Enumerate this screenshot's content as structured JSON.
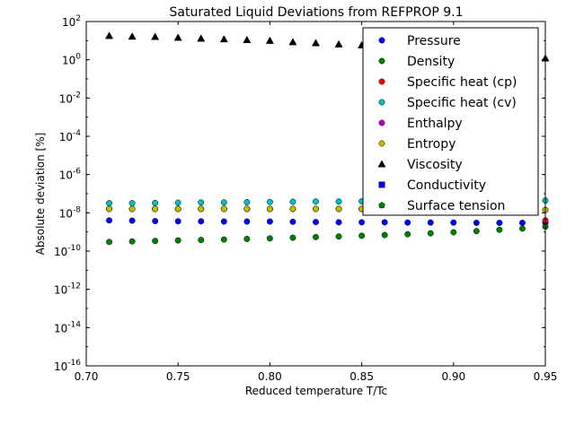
{
  "chart_data": {
    "type": "scatter",
    "title": "Saturated Liquid Deviations from REFPROP 9.1",
    "xlabel": "Reduced temperature T/Tc",
    "ylabel": "Absolute deviation [%]",
    "xlim": [
      0.7,
      0.95
    ],
    "ylim": [
      1e-16,
      100
    ],
    "yscale": "log",
    "grid": false,
    "legend_position": "top-right",
    "x_ticks": [
      {
        "value": 0.7,
        "label": "0.70"
      },
      {
        "value": 0.75,
        "label": "0.75"
      },
      {
        "value": 0.8,
        "label": "0.80"
      },
      {
        "value": 0.85,
        "label": "0.85"
      },
      {
        "value": 0.9,
        "label": "0.90"
      },
      {
        "value": 0.95,
        "label": "0.95"
      }
    ],
    "y_ticks": [
      {
        "value": 100.0,
        "base": "10",
        "exp": "2"
      },
      {
        "value": 1.0,
        "base": "10",
        "exp": "0"
      },
      {
        "value": 0.01,
        "base": "10",
        "exp": "-2"
      },
      {
        "value": 0.0001,
        "base": "10",
        "exp": "-4"
      },
      {
        "value": 1e-06,
        "base": "10",
        "exp": "-6"
      },
      {
        "value": 1e-08,
        "base": "10",
        "exp": "-8"
      },
      {
        "value": 1e-10,
        "base": "10",
        "exp": "-10"
      },
      {
        "value": 1e-12,
        "base": "10",
        "exp": "-12"
      },
      {
        "value": 1e-14,
        "base": "10",
        "exp": "-14"
      },
      {
        "value": 1e-16,
        "base": "10",
        "exp": "-16"
      }
    ],
    "x": [
      0.7125,
      0.725,
      0.7375,
      0.75,
      0.7625,
      0.775,
      0.7875,
      0.8,
      0.8125,
      0.825,
      0.8375,
      0.85,
      0.8625,
      0.875,
      0.8875,
      0.9,
      0.9125,
      0.925,
      0.9375,
      0.95
    ],
    "series": [
      {
        "name": "Pressure",
        "marker": "circle",
        "color": "#0000ff",
        "values": [
          4e-09,
          3.9e-09,
          3.7e-09,
          3.6e-09,
          3.6e-09,
          3.5e-09,
          3.5e-09,
          3.5e-09,
          3.4e-09,
          3.3e-09,
          3.2e-09,
          3.2e-09,
          3.2e-09,
          3.1e-09,
          3.1e-09,
          3.1e-09,
          3e-09,
          3e-09,
          3e-09,
          3e-09
        ]
      },
      {
        "name": "Density",
        "marker": "circle",
        "color": "#008000",
        "values": [
          3e-10,
          3.2e-10,
          3.4e-10,
          3.6e-10,
          3.8e-10,
          4e-10,
          4.3e-10,
          4.6e-10,
          5e-10,
          5.4e-10,
          5.8e-10,
          6.3e-10,
          6.9e-10,
          7.6e-10,
          8.5e-10,
          9.6e-10,
          1.1e-09,
          1.3e-09,
          1.5e-09,
          1.9e-09
        ]
      },
      {
        "name": "Specific heat (cp)",
        "marker": "circle",
        "color": "#ff0000",
        "values": [
          1.6e-08,
          1.6e-08,
          1.6e-08,
          1.6e-08,
          1.6e-08,
          1.6e-08,
          1.6e-08,
          1.6e-08,
          1.6e-08,
          1.6e-08,
          1.6e-08,
          1.6e-08,
          1.6e-08,
          1.6e-08,
          1.6e-08,
          1.6e-08,
          1.5e-08,
          1.5e-08,
          1.5e-08,
          4e-09
        ]
      },
      {
        "name": "Specific heat (cv)",
        "marker": "circle",
        "color": "#00bfbf",
        "values": [
          3.2e-08,
          3.2e-08,
          3.3e-08,
          3.4e-08,
          3.5e-08,
          3.5e-08,
          3.6e-08,
          3.7e-08,
          3.8e-08,
          3.9e-08,
          3.9e-08,
          4e-08,
          4e-08,
          4.1e-08,
          4.1e-08,
          4.2e-08,
          4.2e-08,
          4.3e-08,
          4.3e-08,
          4.4e-08
        ]
      },
      {
        "name": "Enthalpy",
        "marker": "circle",
        "color": "#bf00bf",
        "values": [
          1.6e-08,
          1.6e-08,
          1.6e-08,
          1.6e-08,
          1.6e-08,
          1.6e-08,
          1.6e-08,
          1.6e-08,
          1.6e-08,
          1.6e-08,
          1.6e-08,
          1.6e-08,
          1.6e-08,
          1.6e-08,
          1.6e-08,
          1.6e-08,
          1.5e-08,
          1.5e-08,
          1.5e-08,
          1.4e-08
        ]
      },
      {
        "name": "Entropy",
        "marker": "circle",
        "color": "#bfbf00",
        "values": [
          1.6e-08,
          1.6e-08,
          1.6e-08,
          1.6e-08,
          1.6e-08,
          1.6e-08,
          1.6e-08,
          1.6e-08,
          1.6e-08,
          1.6e-08,
          1.6e-08,
          1.6e-08,
          1.6e-08,
          1.6e-08,
          1.6e-08,
          1.6e-08,
          1.5e-08,
          1.5e-08,
          1.5e-08,
          1.4e-08
        ]
      },
      {
        "name": "Viscosity",
        "marker": "triangle",
        "color": "#000000",
        "values": [
          18,
          16.5,
          16,
          14.5,
          13,
          12,
          11,
          10,
          8.5,
          7.5,
          6.5,
          5.8,
          5,
          4.3,
          3.6,
          3,
          2.5,
          2,
          1.6,
          1.2
        ]
      },
      {
        "name": "Conductivity",
        "marker": "square",
        "color": "#0000ff",
        "values": []
      },
      {
        "name": "Surface tension",
        "marker": "pentagon",
        "color": "#008000",
        "values": []
      }
    ]
  }
}
